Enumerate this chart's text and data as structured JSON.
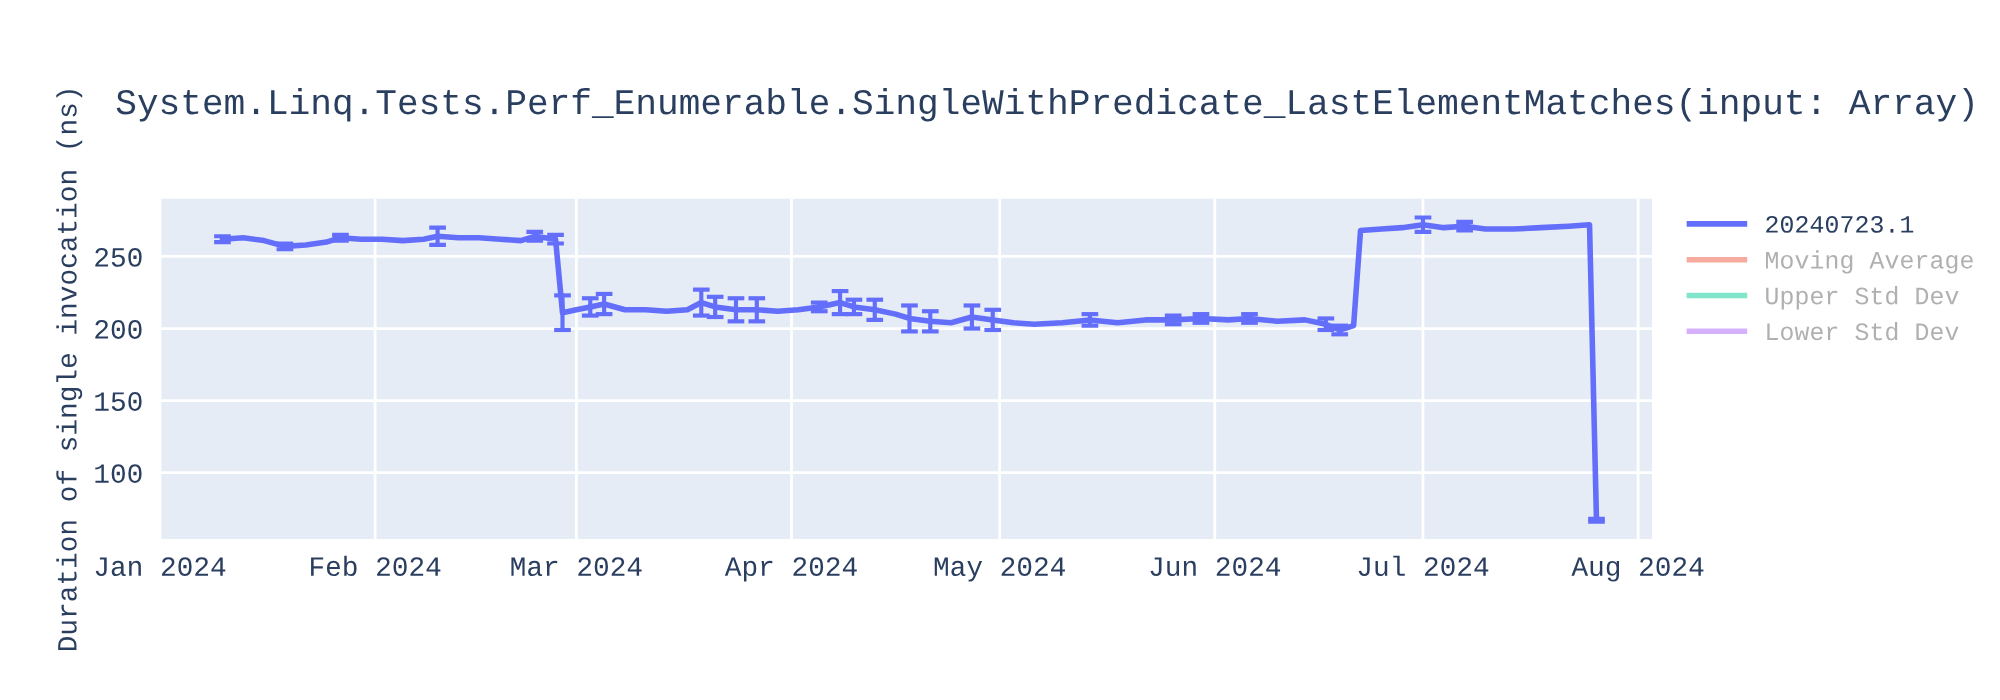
{
  "chart_data": {
    "type": "line",
    "title": "System.Linq.Tests.Perf_Enumerable.SingleWithPredicate_LastElementMatches(input: Array)",
    "ylabel": "Duration of single invocation (ns)",
    "x": [
      "2024-01-10",
      "2024-01-13",
      "2024-01-16",
      "2024-01-19",
      "2024-01-22",
      "2024-01-25",
      "2024-01-27",
      "2024-01-30",
      "2024-02-02",
      "2024-02-05",
      "2024-02-08",
      "2024-02-10",
      "2024-02-13",
      "2024-02-16",
      "2024-02-19",
      "2024-02-22",
      "2024-02-24",
      "2024-02-27",
      "2024-02-28",
      "2024-03-01",
      "2024-03-03",
      "2024-03-05",
      "2024-03-08",
      "2024-03-11",
      "2024-03-14",
      "2024-03-17",
      "2024-03-19",
      "2024-03-21",
      "2024-03-24",
      "2024-03-27",
      "2024-03-30",
      "2024-04-02",
      "2024-04-05",
      "2024-04-08",
      "2024-04-10",
      "2024-04-13",
      "2024-04-16",
      "2024-04-18",
      "2024-04-21",
      "2024-04-24",
      "2024-04-27",
      "2024-04-30",
      "2024-05-03",
      "2024-05-06",
      "2024-05-10",
      "2024-05-14",
      "2024-05-18",
      "2024-05-22",
      "2024-05-26",
      "2024-05-30",
      "2024-06-03",
      "2024-06-06",
      "2024-06-10",
      "2024-06-14",
      "2024-06-17",
      "2024-06-19",
      "2024-06-21",
      "2024-06-22",
      "2024-06-25",
      "2024-06-28",
      "2024-07-01",
      "2024-07-04",
      "2024-07-07",
      "2024-07-10",
      "2024-07-14",
      "2024-07-18",
      "2024-07-22",
      "2024-07-25",
      "2024-07-26"
    ],
    "series": [
      {
        "name": "20240723.1",
        "color": "#636efa",
        "values": [
          262,
          263,
          261,
          257,
          258,
          260,
          263,
          262,
          262,
          261,
          262,
          264,
          263,
          263,
          262,
          261,
          264,
          262,
          211,
          213,
          215,
          217,
          213,
          213,
          212,
          213,
          218,
          215,
          213,
          213,
          212,
          213,
          215,
          218,
          215,
          213,
          210,
          207,
          205,
          204,
          208,
          206,
          204,
          203,
          204,
          206,
          204,
          206,
          206,
          207,
          206,
          207,
          205,
          206,
          203,
          199,
          202,
          268,
          269,
          270,
          272,
          270,
          271,
          269,
          269,
          270,
          271,
          272,
          67
        ],
        "errors": [
          2,
          null,
          null,
          2,
          null,
          null,
          2,
          null,
          null,
          null,
          null,
          6,
          null,
          null,
          null,
          null,
          3,
          3,
          12,
          null,
          6,
          7,
          null,
          null,
          null,
          null,
          9,
          7,
          8,
          8,
          null,
          null,
          3,
          8,
          5,
          7,
          null,
          9,
          7,
          null,
          8,
          7,
          null,
          null,
          null,
          4,
          null,
          null,
          3,
          3,
          null,
          3,
          null,
          null,
          4,
          3,
          null,
          null,
          null,
          null,
          5,
          null,
          3,
          null,
          null,
          null,
          null,
          null,
          1
        ]
      },
      {
        "name": "Moving Average",
        "color": "#f7aa9d",
        "values": [
          null,
          null,
          null,
          null,
          null,
          null,
          null,
          null,
          null,
          null,
          null,
          null,
          null,
          null,
          null,
          null,
          null,
          null,
          null,
          null,
          null,
          null,
          null,
          null,
          null,
          null,
          null,
          null,
          null,
          null,
          null,
          null,
          null,
          null,
          null,
          null,
          null,
          null,
          null,
          null,
          null,
          null,
          null,
          null,
          null,
          null,
          null,
          null,
          null,
          null,
          null,
          null,
          null,
          null,
          null,
          null,
          null,
          null,
          null,
          null,
          null,
          null,
          null,
          null,
          null,
          null,
          null,
          null,
          null
        ]
      },
      {
        "name": "Upper Std Dev",
        "color": "#80e5ca",
        "values": [
          null,
          null,
          null,
          null,
          null,
          null,
          null,
          null,
          null,
          null,
          null,
          null,
          null,
          null,
          null,
          null,
          null,
          null,
          null,
          null,
          null,
          null,
          null,
          null,
          null,
          null,
          null,
          null,
          null,
          null,
          null,
          null,
          null,
          null,
          null,
          null,
          null,
          null,
          null,
          null,
          null,
          null,
          null,
          null,
          null,
          null,
          null,
          null,
          null,
          null,
          null,
          null,
          null,
          null,
          null,
          null,
          null,
          null,
          null,
          null,
          null,
          null,
          null,
          null,
          null,
          null,
          null,
          null,
          null
        ]
      },
      {
        "name": "Lower Std Dev",
        "color": "#d5b1fd",
        "values": [
          null,
          null,
          null,
          null,
          null,
          null,
          null,
          null,
          null,
          null,
          null,
          null,
          null,
          null,
          null,
          null,
          null,
          null,
          null,
          null,
          null,
          null,
          null,
          null,
          null,
          null,
          null,
          null,
          null,
          null,
          null,
          null,
          null,
          null,
          null,
          null,
          null,
          null,
          null,
          null,
          null,
          null,
          null,
          null,
          null,
          null,
          null,
          null,
          null,
          null,
          null,
          null,
          null,
          null,
          null,
          null,
          null,
          null,
          null,
          null,
          null,
          null,
          null,
          null,
          null,
          null,
          null,
          null,
          null
        ]
      }
    ],
    "xlim": [
      "2024-01-01",
      "2024-08-03"
    ],
    "xticks": [
      {
        "value": "2024-01-01",
        "label": "Jan 2024"
      },
      {
        "value": "2024-02-01",
        "label": "Feb 2024"
      },
      {
        "value": "2024-03-01",
        "label": "Mar 2024"
      },
      {
        "value": "2024-04-01",
        "label": "Apr 2024"
      },
      {
        "value": "2024-05-01",
        "label": "May 2024"
      },
      {
        "value": "2024-06-01",
        "label": "Jun 2024"
      },
      {
        "value": "2024-07-01",
        "label": "Jul 2024"
      },
      {
        "value": "2024-08-01",
        "label": "Aug 2024"
      }
    ],
    "ylim": [
      54,
      290
    ],
    "yticks": [
      100,
      150,
      200,
      250
    ],
    "grid": true,
    "legend": "top right",
    "marker": "none",
    "line_style": "solid"
  }
}
